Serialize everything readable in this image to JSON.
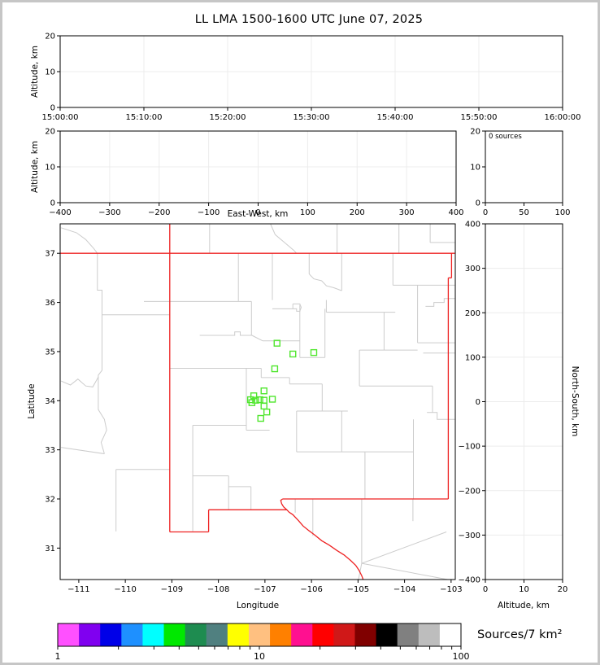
{
  "title": "LL LMA 1500-1600 UTC June 07, 2025",
  "style": {
    "state_border_color": "#ee2222",
    "county_line_color": "#cccccc",
    "source_marker_color": "#50e62e",
    "grid_color": "#ececec",
    "axis_color": "#000000",
    "background": "#ffffff"
  },
  "labels": {
    "altitude_left_top": "Altitude, km",
    "altitude_left_mid": "Altitude, km",
    "east_west": "East-West, km",
    "latitude": "Latitude",
    "longitude": "Longitude",
    "north_south": "North-South, km",
    "altitude_bottom": "Altitude, km",
    "colorbar": "Sources/7 km²",
    "histogram_annotation": "0 sources"
  },
  "chart_data": [
    {
      "id": "time_height",
      "type": "scatter",
      "xlabel": "",
      "ylabel": "Altitude, km",
      "xlim": [
        0,
        3600
      ],
      "xticks": [
        0,
        600,
        1200,
        1800,
        2400,
        3000,
        3600
      ],
      "xtick_labels": [
        "15:00:00",
        "15:10:00",
        "15:20:00",
        "15:30:00",
        "15:40:00",
        "15:50:00",
        "16:00:00"
      ],
      "ylim": [
        0,
        20
      ],
      "yticks": [
        0,
        10,
        20
      ],
      "grid": true,
      "points": []
    },
    {
      "id": "ew_height",
      "type": "scatter",
      "xlabel": "East-West, km",
      "ylabel": "Altitude, km",
      "xlim": [
        -400,
        400
      ],
      "xticks": [
        -400,
        -300,
        -200,
        -100,
        0,
        100,
        200,
        300,
        400
      ],
      "ylim": [
        0,
        20
      ],
      "yticks": [
        0,
        10,
        20
      ],
      "grid": true,
      "points": []
    },
    {
      "id": "histogram",
      "type": "bar",
      "annotation": "0 sources",
      "xlim": [
        0,
        100
      ],
      "xticks": [
        0,
        50,
        100
      ],
      "ylim": [
        0,
        20
      ],
      "yticks": [
        0,
        10,
        20
      ],
      "grid": false,
      "values": []
    },
    {
      "id": "map",
      "type": "scatter",
      "xlabel": "Longitude",
      "ylabel": "Latitude",
      "xlim": [
        -111.4,
        -102.91
      ],
      "ylim": [
        30.36,
        37.6
      ],
      "xticks": [
        -111,
        -110,
        -109,
        -108,
        -107,
        -106,
        -105,
        -104,
        -103
      ],
      "yticks": [
        31,
        32,
        33,
        34,
        35,
        36,
        37
      ],
      "grid": false,
      "sources_lonlat": [
        [
          -106.74,
          35.17
        ],
        [
          -106.4,
          34.95
        ],
        [
          -105.95,
          34.98
        ],
        [
          -106.79,
          34.65
        ],
        [
          -107.02,
          34.2
        ],
        [
          -107.24,
          34.1
        ],
        [
          -107.31,
          34.02
        ],
        [
          -107.2,
          34.01
        ],
        [
          -107.11,
          34.02
        ],
        [
          -107.02,
          34.01
        ],
        [
          -106.84,
          34.03
        ],
        [
          -107.28,
          33.96
        ],
        [
          -107.02,
          33.89
        ],
        [
          -106.96,
          33.77
        ],
        [
          -107.09,
          33.64
        ]
      ]
    },
    {
      "id": "ns_height",
      "type": "scatter",
      "xlabel": "Altitude, km",
      "ylabel": "North-South, km",
      "xlim": [
        0,
        20
      ],
      "xticks": [
        0,
        10,
        20
      ],
      "ylim": [
        -400,
        400
      ],
      "yticks": [
        -400,
        -300,
        -200,
        -100,
        0,
        100,
        200,
        300,
        400
      ],
      "grid": true,
      "points": []
    },
    {
      "id": "colorbar",
      "type": "colorbar",
      "label": "Sources/7 km²",
      "scale": "log",
      "range": [
        1,
        100
      ],
      "tick_values": [
        1,
        2,
        3,
        4,
        5,
        6,
        7,
        8,
        9,
        10,
        20,
        30,
        40,
        50,
        60,
        70,
        80,
        90,
        100
      ],
      "labeled_ticks": [
        1,
        10,
        100
      ],
      "tick_labels": [
        "1",
        "10",
        "100"
      ],
      "colors": [
        "#ff50ff",
        "#8000f0",
        "#0000e8",
        "#1e90ff",
        "#00ffff",
        "#00e800",
        "#1e8c50",
        "#508080",
        "#ffff00",
        "#ffc080",
        "#ff8000",
        "#ff1090",
        "#ff0000",
        "#d01818",
        "#800000",
        "#000000",
        "#808080",
        "#bdbdbd",
        "#ffffff"
      ]
    }
  ],
  "map_layers": {
    "state_lines": [
      [
        [
          -111.4,
          37.0
        ],
        [
          -102.92,
          37.0
        ]
      ],
      [
        [
          -109.045,
          37.6
        ],
        [
          -109.045,
          31.33
        ]
      ],
      [
        [
          -109.045,
          31.33
        ],
        [
          -108.21,
          31.33
        ]
      ],
      [
        [
          -108.21,
          31.33
        ],
        [
          -108.21,
          31.78
        ]
      ],
      [
        [
          -108.21,
          31.78
        ],
        [
          -106.53,
          31.78
        ]
      ],
      [
        [
          -106.62,
          32.0
        ],
        [
          -106.66,
          31.97
        ],
        [
          -106.64,
          31.9
        ],
        [
          -106.6,
          31.84
        ],
        [
          -106.53,
          31.78
        ],
        [
          -106.48,
          31.73
        ],
        [
          -106.4,
          31.68
        ],
        [
          -106.28,
          31.56
        ],
        [
          -106.18,
          31.45
        ],
        [
          -106.05,
          31.35
        ],
        [
          -105.92,
          31.26
        ],
        [
          -105.78,
          31.15
        ],
        [
          -105.62,
          31.06
        ],
        [
          -105.45,
          30.95
        ],
        [
          -105.3,
          30.86
        ],
        [
          -105.16,
          30.75
        ],
        [
          -105.05,
          30.65
        ],
        [
          -104.98,
          30.55
        ],
        [
          -104.92,
          30.44
        ],
        [
          -104.89,
          30.36
        ]
      ],
      [
        [
          -106.62,
          32.0
        ],
        [
          -103.06,
          32.0
        ]
      ],
      [
        [
          -103.06,
          32.0
        ],
        [
          -103.06,
          36.5
        ]
      ],
      [
        [
          -103.06,
          36.5
        ],
        [
          -102.99,
          36.5
        ]
      ],
      [
        [
          -102.99,
          36.5
        ],
        [
          -102.99,
          37.0
        ]
      ]
    ],
    "county_lines": [
      [
        [
          -111.38,
          37.52
        ],
        [
          -111.05,
          37.42
        ],
        [
          -110.85,
          37.28
        ],
        [
          -110.68,
          37.1
        ],
        [
          -110.6,
          37.0
        ]
      ],
      [
        [
          -108.19,
          37.6
        ],
        [
          -108.19,
          37.0
        ]
      ],
      [
        [
          -106.88,
          37.6
        ],
        [
          -106.78,
          37.38
        ],
        [
          -106.58,
          37.22
        ],
        [
          -106.38,
          37.06
        ],
        [
          -106.32,
          37.0
        ]
      ],
      [
        [
          -105.45,
          37.6
        ],
        [
          -105.45,
          37.0
        ]
      ],
      [
        [
          -104.12,
          37.6
        ],
        [
          -104.12,
          37.0
        ]
      ],
      [
        [
          -103.45,
          37.6
        ],
        [
          -103.45,
          37.22
        ]
      ],
      [
        [
          -103.45,
          37.22
        ],
        [
          -102.92,
          37.22
        ]
      ],
      [
        [
          -110.6,
          37.0
        ],
        [
          -110.6,
          36.25
        ],
        [
          -110.5,
          36.25
        ],
        [
          -110.5,
          34.62
        ],
        [
          -110.58,
          34.52
        ],
        [
          -110.58,
          33.82
        ],
        [
          -110.45,
          33.62
        ],
        [
          -110.4,
          33.4
        ],
        [
          -110.52,
          33.15
        ],
        [
          -110.45,
          32.92
        ]
      ],
      [
        [
          -111.38,
          34.4
        ],
        [
          -111.18,
          34.32
        ],
        [
          -111.02,
          34.44
        ],
        [
          -110.85,
          34.3
        ],
        [
          -110.7,
          34.28
        ],
        [
          -110.58,
          34.48
        ]
      ],
      [
        [
          -111.38,
          33.05
        ],
        [
          -110.45,
          32.92
        ]
      ],
      [
        [
          -110.5,
          35.75
        ],
        [
          -109.05,
          35.75
        ]
      ],
      [
        [
          -110.2,
          32.6
        ],
        [
          -109.05,
          32.6
        ]
      ],
      [
        [
          -110.2,
          32.6
        ],
        [
          -110.2,
          31.34
        ]
      ],
      [
        [
          -109.6,
          36.02
        ],
        [
          -107.29,
          36.02
        ]
      ],
      [
        [
          -107.57,
          37.0
        ],
        [
          -107.57,
          36.02
        ]
      ],
      [
        [
          -107.29,
          36.02
        ],
        [
          -107.29,
          35.33
        ]
      ],
      [
        [
          -106.84,
          37.0
        ],
        [
          -106.84,
          36.05
        ]
      ],
      [
        [
          -108.4,
          35.33
        ],
        [
          -107.65,
          35.33
        ],
        [
          -107.65,
          35.4
        ],
        [
          -107.53,
          35.4
        ],
        [
          -107.53,
          35.33
        ],
        [
          -107.28,
          35.33
        ]
      ],
      [
        [
          -107.28,
          35.33
        ],
        [
          -107.05,
          35.22
        ]
      ],
      [
        [
          -107.05,
          35.22
        ],
        [
          -106.25,
          35.22
        ]
      ],
      [
        [
          -106.25,
          35.95
        ],
        [
          -106.25,
          34.88
        ]
      ],
      [
        [
          -106.25,
          34.88
        ],
        [
          -105.71,
          34.88
        ]
      ],
      [
        [
          -105.71,
          35.87
        ],
        [
          -105.71,
          34.88
        ]
      ],
      [
        [
          -106.84,
          35.87
        ],
        [
          -106.4,
          35.87
        ]
      ],
      [
        [
          -106.4,
          35.97
        ],
        [
          -106.25,
          35.97
        ],
        [
          -106.22,
          35.9
        ],
        [
          -106.25,
          35.82
        ],
        [
          -106.32,
          35.82
        ],
        [
          -106.32,
          35.87
        ],
        [
          -106.4,
          35.87
        ],
        [
          -106.4,
          35.97
        ]
      ],
      [
        [
          -106.05,
          37.0
        ],
        [
          -106.05,
          36.58
        ],
        [
          -105.95,
          36.48
        ],
        [
          -105.78,
          36.44
        ],
        [
          -105.68,
          36.34
        ],
        [
          -105.52,
          36.3
        ],
        [
          -105.35,
          36.24
        ]
      ],
      [
        [
          -105.35,
          37.0
        ],
        [
          -105.35,
          36.24
        ]
      ],
      [
        [
          -105.68,
          36.05
        ],
        [
          -105.68,
          35.8
        ]
      ],
      [
        [
          -105.68,
          35.8
        ],
        [
          -104.2,
          35.8
        ]
      ],
      [
        [
          -104.25,
          37.0
        ],
        [
          -104.25,
          36.35
        ]
      ],
      [
        [
          -104.25,
          36.35
        ],
        [
          -102.92,
          36.35
        ]
      ],
      [
        [
          -103.55,
          35.92
        ],
        [
          -103.37,
          35.92
        ],
        [
          -103.37,
          36.0
        ],
        [
          -103.15,
          36.0
        ],
        [
          -103.15,
          36.08
        ],
        [
          -102.92,
          36.08
        ]
      ],
      [
        [
          -103.72,
          36.35
        ],
        [
          -103.72,
          35.18
        ]
      ],
      [
        [
          -103.72,
          35.18
        ],
        [
          -102.92,
          35.18
        ]
      ],
      [
        [
          -104.44,
          35.8
        ],
        [
          -104.44,
          35.03
        ]
      ],
      [
        [
          -104.97,
          35.03
        ],
        [
          -103.72,
          35.03
        ]
      ],
      [
        [
          -104.97,
          35.03
        ],
        [
          -104.97,
          34.3
        ]
      ],
      [
        [
          -104.97,
          34.3
        ],
        [
          -103.4,
          34.3
        ]
      ],
      [
        [
          -103.4,
          34.3
        ],
        [
          -103.4,
          33.76
        ]
      ],
      [
        [
          -103.52,
          33.76
        ],
        [
          -103.3,
          33.76
        ],
        [
          -103.3,
          33.62
        ],
        [
          -102.92,
          33.62
        ]
      ],
      [
        [
          -103.6,
          34.97
        ],
        [
          -102.92,
          34.97
        ]
      ],
      [
        [
          -109.05,
          34.66
        ],
        [
          -107.08,
          34.66
        ]
      ],
      [
        [
          -107.08,
          34.66
        ],
        [
          -107.08,
          34.47
        ]
      ],
      [
        [
          -107.08,
          34.47
        ],
        [
          -106.47,
          34.47
        ]
      ],
      [
        [
          -106.47,
          34.47
        ],
        [
          -106.47,
          34.34
        ]
      ],
      [
        [
          -106.47,
          34.34
        ],
        [
          -105.77,
          34.34
        ]
      ],
      [
        [
          -105.77,
          34.34
        ],
        [
          -105.77,
          33.79
        ]
      ],
      [
        [
          -106.32,
          33.79
        ],
        [
          -105.22,
          33.79
        ]
      ],
      [
        [
          -106.32,
          33.79
        ],
        [
          -106.32,
          32.96
        ]
      ],
      [
        [
          -105.35,
          33.79
        ],
        [
          -105.35,
          32.96
        ]
      ],
      [
        [
          -106.32,
          32.96
        ],
        [
          -103.81,
          32.96
        ]
      ],
      [
        [
          -104.85,
          32.96
        ],
        [
          -104.85,
          32.0
        ]
      ],
      [
        [
          -107.4,
          34.66
        ],
        [
          -107.4,
          33.4
        ]
      ],
      [
        [
          -108.55,
          33.5
        ],
        [
          -107.4,
          33.5
        ]
      ],
      [
        [
          -108.55,
          33.5
        ],
        [
          -108.55,
          31.34
        ]
      ],
      [
        [
          -107.4,
          33.4
        ],
        [
          -106.9,
          33.4
        ]
      ],
      [
        [
          -108.55,
          32.47
        ],
        [
          -107.78,
          32.47
        ]
      ],
      [
        [
          -107.78,
          32.47
        ],
        [
          -107.78,
          31.78
        ]
      ],
      [
        [
          -107.78,
          32.25
        ],
        [
          -107.3,
          32.25
        ]
      ],
      [
        [
          -107.3,
          32.25
        ],
        [
          -107.3,
          31.78
        ]
      ],
      [
        [
          -103.81,
          33.62
        ],
        [
          -103.81,
          32.0
        ]
      ],
      [
        [
          -105.97,
          32.0
        ],
        [
          -105.97,
          31.25
        ]
      ],
      [
        [
          -106.35,
          32.0
        ],
        [
          -106.35,
          31.72
        ]
      ],
      [
        [
          -104.92,
          32.0
        ],
        [
          -104.92,
          30.69
        ]
      ],
      [
        [
          -104.92,
          30.69
        ],
        [
          -104.99,
          30.36
        ]
      ],
      [
        [
          -104.92,
          30.69
        ],
        [
          -103.07,
          30.36
        ]
      ],
      [
        [
          -104.92,
          30.69
        ],
        [
          -103.1,
          31.33
        ]
      ],
      [
        [
          -103.82,
          32.0
        ],
        [
          -103.82,
          31.55
        ]
      ]
    ]
  }
}
